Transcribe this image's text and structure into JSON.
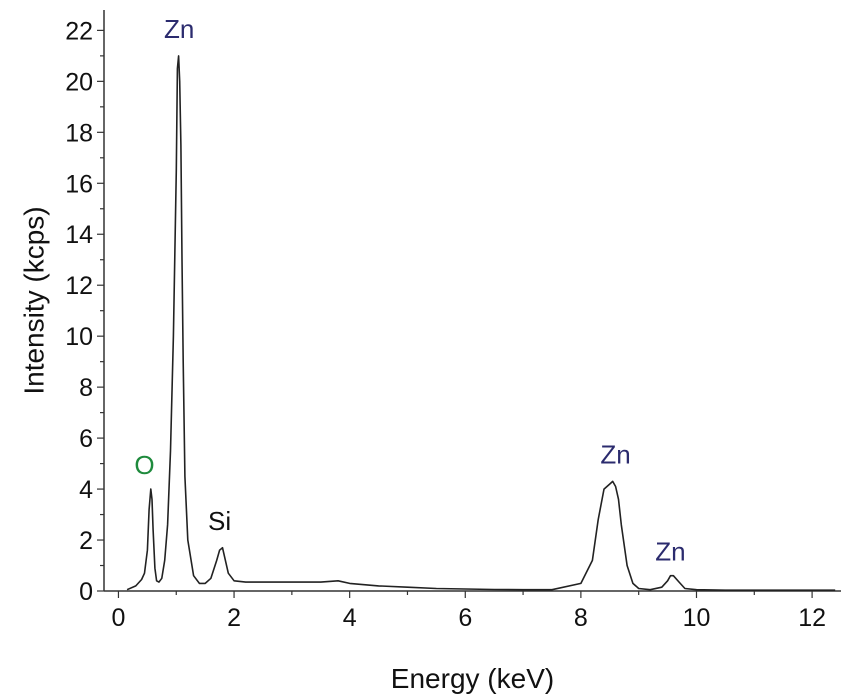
{
  "chart_data": {
    "type": "line",
    "title": "",
    "xlabel": "Energy (keV)",
    "ylabel": "Intensity (kcps)",
    "xlim": [
      -0.25,
      12.5
    ],
    "ylim": [
      0,
      22.8
    ],
    "xticks": [
      0,
      2,
      4,
      6,
      8,
      10,
      12
    ],
    "yticks": [
      0,
      2,
      4,
      6,
      8,
      10,
      12,
      14,
      16,
      18,
      20,
      22
    ],
    "grid": false,
    "legend": "none",
    "line_color": "#222222",
    "series": [
      {
        "x": [
          0.15,
          0.3,
          0.4,
          0.45,
          0.5,
          0.53,
          0.56,
          0.58,
          0.6,
          0.63,
          0.66,
          0.7,
          0.75,
          0.8,
          0.85,
          0.9,
          0.95,
          1.0,
          1.02,
          1.04,
          1.06,
          1.08,
          1.1,
          1.12,
          1.15,
          1.2,
          1.3,
          1.4,
          1.5,
          1.6,
          1.7,
          1.75,
          1.8,
          1.85,
          1.9,
          2.0,
          2.2,
          2.5,
          3.0,
          3.5,
          3.8,
          4.0,
          4.5,
          5.0,
          5.5,
          6.0,
          6.5,
          7.0,
          7.5,
          8.0,
          8.2,
          8.3,
          8.4,
          8.5,
          8.55,
          8.6,
          8.65,
          8.7,
          8.8,
          8.9,
          9.0,
          9.2,
          9.4,
          9.5,
          9.55,
          9.6,
          9.7,
          9.8,
          10.0,
          10.5,
          11.0,
          11.5,
          12.0,
          12.4
        ],
        "values": [
          0.05,
          0.2,
          0.45,
          0.7,
          1.6,
          3.2,
          4.0,
          3.6,
          2.4,
          0.9,
          0.4,
          0.35,
          0.5,
          1.2,
          2.6,
          5.5,
          10.0,
          16.5,
          20.5,
          21.0,
          20.0,
          17.5,
          13.0,
          9.0,
          4.5,
          2.0,
          0.6,
          0.3,
          0.3,
          0.5,
          1.2,
          1.6,
          1.7,
          1.2,
          0.7,
          0.4,
          0.35,
          0.35,
          0.35,
          0.35,
          0.4,
          0.3,
          0.2,
          0.15,
          0.1,
          0.08,
          0.06,
          0.05,
          0.05,
          0.3,
          1.2,
          2.8,
          4.0,
          4.2,
          4.3,
          4.1,
          3.6,
          2.6,
          1.0,
          0.3,
          0.1,
          0.05,
          0.15,
          0.4,
          0.6,
          0.6,
          0.35,
          0.1,
          0.05,
          0.03,
          0.03,
          0.03,
          0.03,
          0.03
        ]
      }
    ],
    "annotations": [
      {
        "text": "O",
        "x": 0.45,
        "y": 4.6,
        "color": "#1e8a3c"
      },
      {
        "text": "Zn",
        "x": 1.05,
        "y": 21.7,
        "color": "#2b2b6e"
      },
      {
        "text": "Si",
        "x": 1.75,
        "y": 2.4,
        "color": "#111111"
      },
      {
        "text": "Zn",
        "x": 8.6,
        "y": 5.0,
        "color": "#2b2b6e"
      },
      {
        "text": "Zn",
        "x": 9.55,
        "y": 1.2,
        "color": "#2b2b6e"
      }
    ]
  }
}
